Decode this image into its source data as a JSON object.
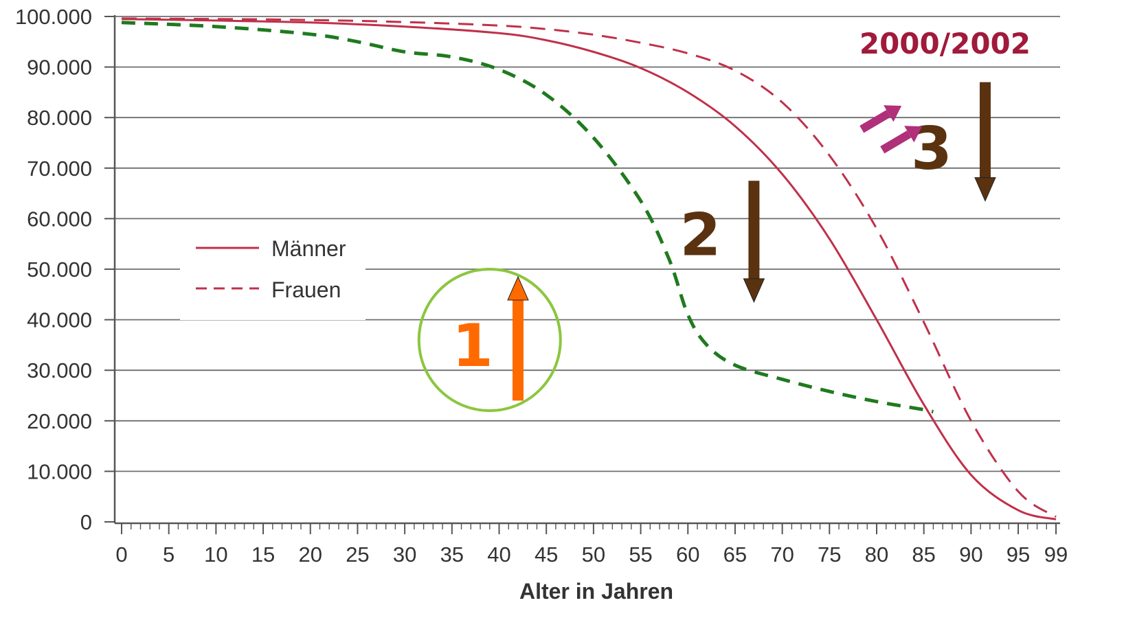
{
  "chart_data": {
    "type": "line",
    "title": "2000/2002",
    "xlabel": "Alter in Jahren",
    "ylabel": "",
    "xlim": [
      0,
      99
    ],
    "ylim": [
      0,
      100000
    ],
    "grid": "horizontal",
    "legend_position": "left",
    "x_ticks": [
      "0",
      "5",
      "10",
      "15",
      "20",
      "25",
      "30",
      "35",
      "40",
      "45",
      "50",
      "55",
      "60",
      "65",
      "70",
      "75",
      "80",
      "85",
      "90",
      "95",
      "99"
    ],
    "y_ticks": [
      "0",
      "10.000",
      "20.000",
      "30.000",
      "40.000",
      "50.000",
      "60.000",
      "70.000",
      "80.000",
      "90.000",
      "100.000"
    ],
    "legend": [
      {
        "label": "Männer",
        "style": "solid",
        "color": "#c0304a"
      },
      {
        "label": "Frauen",
        "style": "dashed",
        "color": "#c0304a"
      }
    ],
    "series": [
      {
        "name": "Männer",
        "style": "solid",
        "color": "#c0304a",
        "x": [
          0,
          10,
          20,
          30,
          40,
          45,
          50,
          55,
          60,
          65,
          70,
          75,
          80,
          85,
          90,
          95,
          99
        ],
        "y": [
          99500,
          99200,
          98800,
          98000,
          96700,
          95300,
          93000,
          89800,
          85000,
          78300,
          68800,
          56000,
          40000,
          23200,
          9300,
          2300,
          500
        ]
      },
      {
        "name": "Frauen",
        "style": "dashed",
        "color": "#c0304a",
        "x": [
          0,
          10,
          20,
          30,
          40,
          45,
          50,
          55,
          60,
          65,
          70,
          75,
          80,
          85,
          90,
          95,
          99
        ],
        "y": [
          99600,
          99500,
          99300,
          98900,
          98200,
          97500,
          96400,
          94800,
          92700,
          89300,
          83000,
          72500,
          58000,
          39500,
          20000,
          6000,
          1000
        ]
      },
      {
        "style": "dashed",
        "color": "#1f7a1f",
        "x": [
          0,
          10,
          20,
          25,
          30,
          35,
          40,
          45,
          50,
          55,
          58,
          60,
          62,
          65,
          70,
          75,
          80,
          85,
          86
        ],
        "y": [
          98800,
          98000,
          96500,
          95000,
          93000,
          92000,
          89500,
          84500,
          76000,
          63500,
          52000,
          41000,
          35000,
          31000,
          28200,
          25800,
          23800,
          22200,
          21800
        ]
      }
    ],
    "annotations": [
      {
        "text": "1",
        "color": "#ff6a00",
        "arrow": "up",
        "x": 42,
        "y_from": 24000,
        "y_to": 48500
      },
      {
        "text": "2",
        "color": "#5a3210",
        "arrow": "down",
        "x": 67,
        "y_from": 67500,
        "y_to": 43500
      },
      {
        "text": "3",
        "color": "#5a3210",
        "arrow": "down",
        "x": 91.5,
        "y_from": 87000,
        "y_to": 63500
      }
    ],
    "circle": {
      "x": 39,
      "y": 36000,
      "color": "#8cc63f"
    },
    "double_arrow": {
      "color": "#b0307a",
      "x": [
        79,
        83
      ],
      "y": [
        77000,
        83000
      ]
    }
  }
}
